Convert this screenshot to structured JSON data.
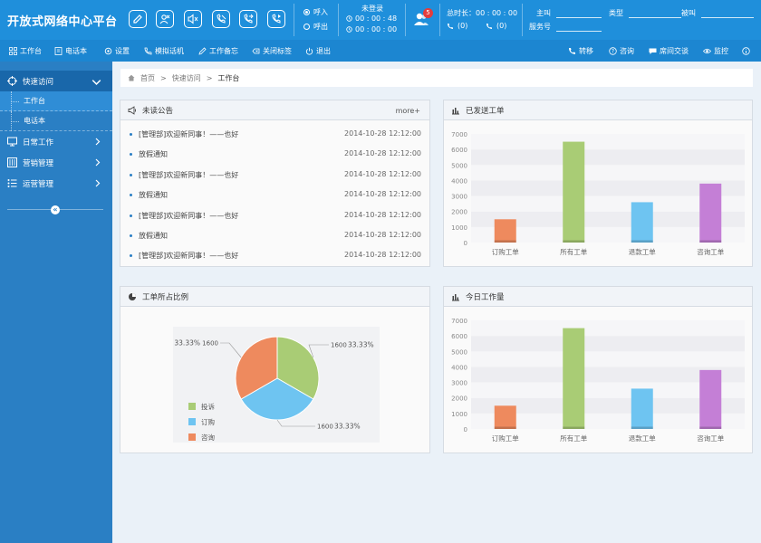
{
  "header": {
    "title": "开放式网络中心平台",
    "call_in": "呼入",
    "call_out": "呼出",
    "login_status": "未登录",
    "timer1": "00 : 00 : 48",
    "timer2": "00 : 00 : 00",
    "badge_count": "5",
    "total_duration": "总时长：00 : 00 : 00",
    "count_in": "(0)",
    "count_out": "(0)",
    "field_caller": "主叫",
    "field_type": "类型",
    "field_called": "被叫",
    "field_service_no": "服务号"
  },
  "menubar": {
    "left": [
      {
        "label": "工作台",
        "icon": "grid-icon"
      },
      {
        "label": "电话本",
        "icon": "book-icon"
      },
      {
        "label": "设置",
        "icon": "gear-icon"
      },
      {
        "label": "模拟话机",
        "icon": "phone-icon"
      },
      {
        "label": "工作备忘",
        "icon": "pen-icon"
      },
      {
        "label": "关闭标签",
        "icon": "close-tab-icon"
      },
      {
        "label": "退出",
        "icon": "power-icon"
      }
    ],
    "right": [
      {
        "label": "转移",
        "icon": "phone-transfer-icon"
      },
      {
        "label": "咨询",
        "icon": "question-icon"
      },
      {
        "label": "席间交谈",
        "icon": "chat-icon"
      },
      {
        "label": "监控",
        "icon": "eye-icon"
      }
    ]
  },
  "sidebar": {
    "quick": "快速访问",
    "sub_items": [
      "工作台",
      "电话本"
    ],
    "groups": [
      "日常工作",
      "营销管理",
      "运营管理"
    ]
  },
  "breadcrumb": {
    "home": "首页",
    "quick": "快速访问",
    "current": "工作台"
  },
  "notices": {
    "title": "未读公告",
    "more": "more+",
    "items": [
      {
        "text": "[管理部]欢迎新同事！——也好",
        "date": "2014-10-28 12:12:00"
      },
      {
        "text": "放假通知",
        "date": "2014-10-28 12:12:00"
      },
      {
        "text": "[管理部]欢迎新同事！——也好",
        "date": "2014-10-28 12:12:00"
      },
      {
        "text": "放假通知",
        "date": "2014-10-28 12:12:00"
      },
      {
        "text": "[管理部]欢迎新同事！——也好",
        "date": "2014-10-28 12:12:00"
      },
      {
        "text": "放假通知",
        "date": "2014-10-28 12:12:00"
      },
      {
        "text": "[管理部]欢迎新同事！——也好",
        "date": "2014-10-28 12:12:00"
      }
    ]
  },
  "colors": {
    "order": "#ee8a5e",
    "all": "#a9cc75",
    "refund": "#6ec4f1",
    "consult": "#c47fd6",
    "accent": "#1f8fdb"
  },
  "chart_data": [
    {
      "type": "bar",
      "title": "已发送工单",
      "categories": [
        "订购工单",
        "所有工单",
        "退款工单",
        "咨询工单"
      ],
      "values": [
        1500,
        6500,
        2600,
        3800
      ],
      "yticks": [
        0,
        1000,
        2000,
        3000,
        4000,
        5000,
        6000,
        7000
      ],
      "ylim": [
        0,
        7000
      ],
      "grid": true
    },
    {
      "type": "pie",
      "title": "工单所占比例",
      "slices": [
        {
          "name": "投诉",
          "value": 1600,
          "percent": "33.33%",
          "color": "#a9cc75"
        },
        {
          "name": "订购",
          "value": 1600,
          "percent": "33.33%",
          "color": "#6ec4f1"
        },
        {
          "name": "咨询",
          "value": 1600,
          "percent": "33.33%",
          "color": "#ee8a5e"
        }
      ],
      "legend": "left"
    },
    {
      "type": "bar",
      "title": "今日工作量",
      "categories": [
        "订购工单",
        "所有工单",
        "退款工单",
        "咨询工单"
      ],
      "values": [
        1500,
        6500,
        2600,
        3800
      ],
      "yticks": [
        0,
        1000,
        2000,
        3000,
        4000,
        5000,
        6000,
        7000
      ],
      "ylim": [
        0,
        7000
      ],
      "grid": true
    }
  ]
}
